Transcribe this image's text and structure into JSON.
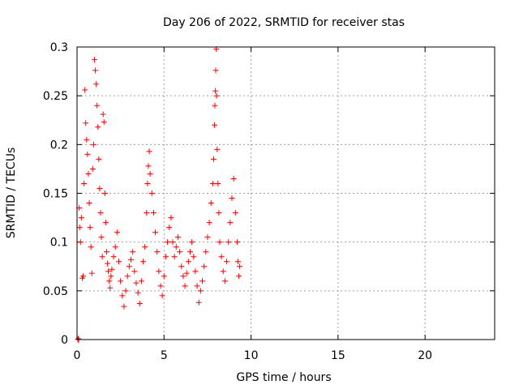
{
  "chart_data": {
    "type": "scatter",
    "title": "Day 206 of 2022, SRMTID for receiver stas",
    "xlabel": "GPS time / hours",
    "ylabel": "SRMTID / TECUs",
    "xlim": [
      0,
      24
    ],
    "ylim": [
      0,
      0.3
    ],
    "x_ticks": [
      0,
      5,
      10,
      15,
      20
    ],
    "x_tick_labels": [
      "0",
      "5",
      "10",
      "15",
      "20"
    ],
    "y_ticks": [
      0,
      0.05,
      0.1,
      0.15,
      0.2,
      0.25,
      0.3
    ],
    "y_tick_labels": [
      "0",
      "0.05",
      "0.1",
      "0.15",
      "0.2",
      "0.25",
      "0.3"
    ],
    "grid": true,
    "marker": "+",
    "color": "#ff0000",
    "series": [
      {
        "name": "SRMTID",
        "points": [
          [
            0.05,
            0.0
          ],
          [
            0.08,
            0.001
          ],
          [
            0.1,
            0.0
          ],
          [
            0.12,
            0.135
          ],
          [
            0.15,
            0.115
          ],
          [
            0.2,
            0.1
          ],
          [
            0.25,
            0.125
          ],
          [
            0.3,
            0.063
          ],
          [
            0.35,
            0.065
          ],
          [
            0.4,
            0.16
          ],
          [
            0.45,
            0.256
          ],
          [
            0.5,
            0.222
          ],
          [
            0.55,
            0.205
          ],
          [
            0.6,
            0.19
          ],
          [
            0.65,
            0.17
          ],
          [
            0.7,
            0.14
          ],
          [
            0.75,
            0.115
          ],
          [
            0.8,
            0.095
          ],
          [
            0.85,
            0.068
          ],
          [
            0.9,
            0.175
          ],
          [
            0.95,
            0.2
          ],
          [
            1.0,
            0.287
          ],
          [
            1.05,
            0.276
          ],
          [
            1.1,
            0.262
          ],
          [
            1.15,
            0.24
          ],
          [
            1.2,
            0.218
          ],
          [
            1.25,
            0.185
          ],
          [
            1.3,
            0.155
          ],
          [
            1.35,
            0.13
          ],
          [
            1.4,
            0.105
          ],
          [
            1.45,
            0.085
          ],
          [
            1.5,
            0.231
          ],
          [
            1.55,
            0.223
          ],
          [
            1.6,
            0.15
          ],
          [
            1.65,
            0.12
          ],
          [
            1.7,
            0.09
          ],
          [
            1.75,
            0.078
          ],
          [
            1.8,
            0.07
          ],
          [
            1.85,
            0.06
          ],
          [
            1.9,
            0.053
          ],
          [
            1.95,
            0.065
          ],
          [
            2.0,
            0.072
          ],
          [
            2.1,
            0.085
          ],
          [
            2.2,
            0.095
          ],
          [
            2.3,
            0.11
          ],
          [
            2.4,
            0.08
          ],
          [
            2.5,
            0.06
          ],
          [
            2.6,
            0.045
          ],
          [
            2.7,
            0.034
          ],
          [
            2.8,
            0.05
          ],
          [
            2.9,
            0.065
          ],
          [
            3.0,
            0.075
          ],
          [
            3.1,
            0.082
          ],
          [
            3.2,
            0.09
          ],
          [
            3.3,
            0.07
          ],
          [
            3.4,
            0.058
          ],
          [
            3.5,
            0.048
          ],
          [
            3.6,
            0.037
          ],
          [
            3.7,
            0.06
          ],
          [
            3.8,
            0.08
          ],
          [
            3.9,
            0.095
          ],
          [
            4.0,
            0.13
          ],
          [
            4.05,
            0.16
          ],
          [
            4.1,
            0.178
          ],
          [
            4.15,
            0.193
          ],
          [
            4.2,
            0.17
          ],
          [
            4.3,
            0.15
          ],
          [
            4.4,
            0.13
          ],
          [
            4.5,
            0.11
          ],
          [
            4.6,
            0.09
          ],
          [
            4.7,
            0.07
          ],
          [
            4.8,
            0.055
          ],
          [
            4.9,
            0.045
          ],
          [
            5.0,
            0.065
          ],
          [
            5.1,
            0.085
          ],
          [
            5.2,
            0.1
          ],
          [
            5.3,
            0.115
          ],
          [
            5.4,
            0.125
          ],
          [
            5.5,
            0.1
          ],
          [
            5.6,
            0.085
          ],
          [
            5.7,
            0.095
          ],
          [
            5.8,
            0.105
          ],
          [
            5.9,
            0.09
          ],
          [
            6.0,
            0.075
          ],
          [
            6.1,
            0.065
          ],
          [
            6.2,
            0.055
          ],
          [
            6.3,
            0.068
          ],
          [
            6.4,
            0.08
          ],
          [
            6.5,
            0.09
          ],
          [
            6.6,
            0.1
          ],
          [
            6.7,
            0.085
          ],
          [
            6.8,
            0.07
          ],
          [
            6.9,
            0.055
          ],
          [
            7.0,
            0.038
          ],
          [
            7.1,
            0.05
          ],
          [
            7.2,
            0.06
          ],
          [
            7.3,
            0.075
          ],
          [
            7.4,
            0.09
          ],
          [
            7.5,
            0.105
          ],
          [
            7.6,
            0.12
          ],
          [
            7.7,
            0.14
          ],
          [
            7.8,
            0.16
          ],
          [
            7.85,
            0.185
          ],
          [
            7.9,
            0.22
          ],
          [
            7.92,
            0.24
          ],
          [
            7.95,
            0.255
          ],
          [
            7.97,
            0.276
          ],
          [
            8.0,
            0.298
          ],
          [
            8.02,
            0.25
          ],
          [
            8.05,
            0.195
          ],
          [
            8.1,
            0.16
          ],
          [
            8.15,
            0.13
          ],
          [
            8.2,
            0.1
          ],
          [
            8.3,
            0.085
          ],
          [
            8.4,
            0.07
          ],
          [
            8.5,
            0.06
          ],
          [
            8.6,
            0.08
          ],
          [
            8.7,
            0.1
          ],
          [
            8.8,
            0.12
          ],
          [
            8.9,
            0.145
          ],
          [
            9.0,
            0.165
          ],
          [
            9.1,
            0.13
          ],
          [
            9.2,
            0.1
          ],
          [
            9.25,
            0.08
          ],
          [
            9.3,
            0.065
          ],
          [
            9.35,
            0.075
          ]
        ]
      }
    ]
  }
}
